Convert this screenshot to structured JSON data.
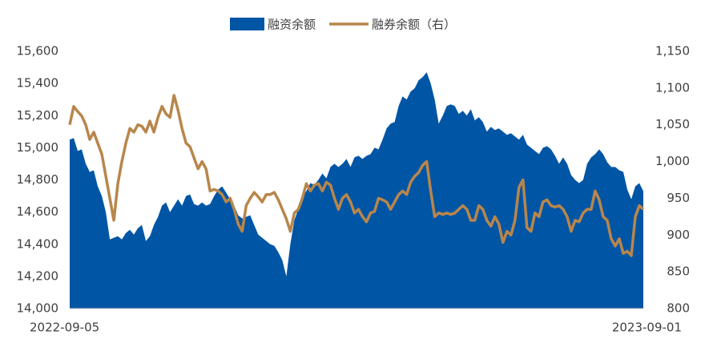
{
  "chart_data": {
    "type": "area-line",
    "categories": [
      "2022-09-05",
      null,
      null,
      null,
      null,
      null,
      null,
      null,
      null,
      null,
      null,
      null,
      null,
      null,
      null,
      null,
      null,
      null,
      null,
      null,
      null,
      null,
      null,
      null,
      null,
      null,
      null,
      null,
      null,
      null,
      null,
      null,
      null,
      null,
      null,
      null,
      null,
      null,
      null,
      null,
      null,
      null,
      null,
      null,
      null,
      null,
      null,
      null,
      null,
      null,
      null,
      null,
      null,
      null,
      null,
      null,
      null,
      null,
      null,
      null,
      null,
      null,
      null,
      null,
      null,
      null,
      null,
      null,
      null,
      null,
      null,
      null,
      null,
      null,
      null,
      null,
      null,
      null,
      null,
      null,
      null,
      null,
      null,
      null,
      null,
      null,
      null,
      null,
      null,
      null,
      null,
      null,
      null,
      null,
      null,
      null,
      null,
      null,
      null,
      null,
      null,
      null,
      null,
      null,
      null,
      null,
      null,
      null,
      null,
      null,
      null,
      null,
      null,
      null,
      null,
      null,
      null,
      null,
      null,
      null,
      null,
      null,
      null,
      null,
      null,
      null,
      null,
      null,
      null,
      null,
      null,
      null,
      null,
      null,
      null,
      null,
      null,
      null,
      null,
      null,
      null,
      null,
      null,
      "2023-09-01"
    ],
    "series": [
      {
        "name": "融资余额",
        "color": "#0055a5",
        "axis": "y",
        "values": [
          15050,
          15060,
          14980,
          14990,
          14900,
          14850,
          14860,
          14760,
          14700,
          14600,
          14430,
          14440,
          14450,
          14430,
          14470,
          14490,
          14460,
          14500,
          14520,
          14420,
          14450,
          14520,
          14570,
          14640,
          14660,
          14600,
          14640,
          14680,
          14640,
          14700,
          14710,
          14650,
          14640,
          14660,
          14640,
          14650,
          14700,
          14740,
          14760,
          14720,
          14680,
          14640,
          14580,
          14560,
          14570,
          14580,
          14520,
          14460,
          14440,
          14420,
          14400,
          14390,
          14350,
          14300,
          14200,
          14400,
          14550,
          14620,
          14700,
          14730,
          14780,
          14770,
          14800,
          14840,
          14810,
          14880,
          14900,
          14880,
          14900,
          14930,
          14880,
          14940,
          14950,
          14930,
          14950,
          14960,
          15000,
          14990,
          15050,
          15120,
          15150,
          15160,
          15260,
          15320,
          15300,
          15350,
          15370,
          15420,
          15440,
          15470,
          15400,
          15300,
          15150,
          15200,
          15260,
          15270,
          15260,
          15210,
          15230,
          15200,
          15240,
          15170,
          15190,
          15160,
          15100,
          15130,
          15110,
          15120,
          15100,
          15080,
          15090,
          15070,
          15050,
          15080,
          15020,
          15000,
          14980,
          14960,
          15000,
          15010,
          14990,
          14950,
          14900,
          14940,
          14900,
          14830,
          14800,
          14780,
          14800,
          14900,
          14940,
          14960,
          14990,
          14960,
          14910,
          14880,
          14880,
          14860,
          14850,
          14740,
          14680,
          14760,
          14780,
          14730
        ]
      },
      {
        "name": "融券余额（右）",
        "color": "#b8864b",
        "axis": "y2",
        "values": [
          1050,
          1075,
          1068,
          1062,
          1050,
          1030,
          1040,
          1025,
          1010,
          980,
          950,
          920,
          970,
          1000,
          1025,
          1045,
          1040,
          1050,
          1048,
          1040,
          1055,
          1040,
          1060,
          1075,
          1065,
          1060,
          1090,
          1070,
          1045,
          1025,
          1020,
          1005,
          990,
          1000,
          990,
          960,
          962,
          960,
          955,
          945,
          950,
          935,
          915,
          905,
          940,
          950,
          958,
          952,
          945,
          955,
          955,
          958,
          948,
          935,
          922,
          905,
          930,
          935,
          950,
          970,
          960,
          968,
          970,
          960,
          972,
          968,
          950,
          935,
          950,
          955,
          945,
          930,
          935,
          925,
          918,
          930,
          932,
          950,
          948,
          945,
          935,
          945,
          955,
          960,
          955,
          972,
          980,
          985,
          995,
          1000,
          960,
          925,
          930,
          928,
          930,
          928,
          930,
          935,
          940,
          935,
          920,
          920,
          940,
          935,
          920,
          912,
          925,
          915,
          890,
          905,
          900,
          920,
          965,
          975,
          910,
          905,
          930,
          925,
          945,
          948,
          940,
          938,
          940,
          935,
          925,
          905,
          920,
          918,
          930,
          935,
          935,
          960,
          948,
          925,
          920,
          895,
          885,
          895,
          875,
          878,
          872,
          925,
          940,
          935
        ]
      }
    ],
    "ylim": [
      14000,
      15600
    ],
    "yticks": [
      {
        "value": 14000,
        "label": "14,000"
      },
      {
        "value": 14200,
        "label": "14,200"
      },
      {
        "value": 14400,
        "label": "14,400"
      },
      {
        "value": 14600,
        "label": "14,600"
      },
      {
        "value": 14800,
        "label": "14,800"
      },
      {
        "value": 15000,
        "label": "15,000"
      },
      {
        "value": 15200,
        "label": "15,200"
      },
      {
        "value": 15400,
        "label": "15,400"
      },
      {
        "value": 15600,
        "label": "15,600"
      }
    ],
    "y2lim": [
      800,
      1150
    ],
    "y2ticks": [
      800,
      850,
      900,
      950,
      {
        "value": 1000,
        "label": "1,000"
      },
      {
        "value": 1050,
        "label": "1,050"
      },
      {
        "value": 1100,
        "label": "1,100"
      },
      {
        "value": 1150,
        "label": "1,150"
      }
    ],
    "legend": "top"
  }
}
